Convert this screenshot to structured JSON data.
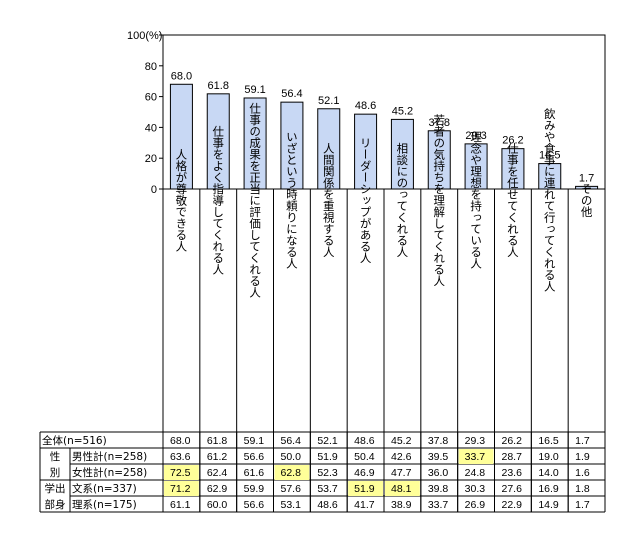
{
  "chart_data": {
    "type": "bar",
    "y_unit_label": "100(%)",
    "ylim": [
      0,
      100
    ],
    "yticks": [
      0,
      20,
      40,
      60,
      80
    ],
    "grid": false,
    "bar_color": "#c8d8f4",
    "highlight_color": "#ffff99",
    "categories": [
      "人格が尊敬できる人",
      "仕事をよく指導してくれる人",
      "仕事の成果を正当に評価してくれる人",
      "いざという時頼りになる人",
      "人間関係を重視する人",
      "リーダーシップがある人",
      "相談にのってくれる人",
      "若者の気持ちを理解してくれる人",
      "理念や理想を持っている人",
      "仕事を任せてくれる人",
      "飲みや食事に連れて行ってくれる人",
      "その他"
    ],
    "values": [
      68.0,
      61.8,
      59.1,
      56.4,
      52.1,
      48.6,
      45.2,
      37.8,
      29.3,
      26.2,
      16.5,
      1.7
    ],
    "value_labels": [
      "68.0",
      "61.8",
      "59.1",
      "56.4",
      "52.1",
      "48.6",
      "45.2",
      "37.8",
      "29.3",
      "26.2",
      "16.5",
      "1.7"
    ]
  },
  "table": {
    "group_labels": [
      {
        "text": "性",
        "rows": [
          1,
          1
        ]
      },
      {
        "text": "別",
        "rows": [
          2,
          2
        ]
      },
      {
        "text": "学出",
        "rows": [
          3,
          3
        ]
      },
      {
        "text": "部身",
        "rows": [
          4,
          4
        ]
      }
    ],
    "rows": [
      {
        "label": "全体(n=516)",
        "indent": false,
        "values": [
          "68.0",
          "61.8",
          "59.1",
          "56.4",
          "52.1",
          "48.6",
          "45.2",
          "37.8",
          "29.3",
          "26.2",
          "16.5",
          "1.7"
        ],
        "highlight": []
      },
      {
        "label": "男性計(n=258)",
        "indent": true,
        "values": [
          "63.6",
          "61.2",
          "56.6",
          "50.0",
          "51.9",
          "50.4",
          "42.6",
          "39.5",
          "33.7",
          "28.7",
          "19.0",
          "1.9"
        ],
        "highlight": [
          8
        ]
      },
      {
        "label": "女性計(n=258)",
        "indent": true,
        "values": [
          "72.5",
          "62.4",
          "61.6",
          "62.8",
          "52.3",
          "46.9",
          "47.7",
          "36.0",
          "24.8",
          "23.6",
          "14.0",
          "1.6"
        ],
        "highlight": [
          0,
          3
        ]
      },
      {
        "label": "文系(n=337)",
        "indent": true,
        "values": [
          "71.2",
          "62.9",
          "59.9",
          "57.6",
          "53.7",
          "51.9",
          "48.1",
          "39.8",
          "30.3",
          "27.6",
          "16.9",
          "1.8"
        ],
        "highlight": [
          0,
          5,
          6
        ]
      },
      {
        "label": "理系(n=175)",
        "indent": true,
        "values": [
          "61.1",
          "60.0",
          "56.6",
          "53.1",
          "48.6",
          "41.7",
          "38.9",
          "33.7",
          "26.9",
          "22.9",
          "14.9",
          "1.7"
        ],
        "highlight": []
      }
    ]
  }
}
